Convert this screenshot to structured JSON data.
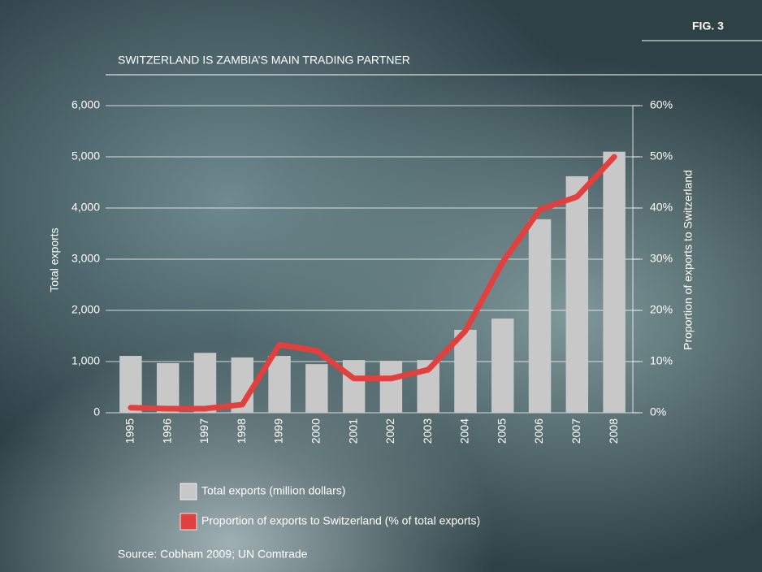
{
  "chart_data": {
    "type": "bar",
    "figure_label": "FIG. 3",
    "title": "SWITZERLAND IS ZAMBIA’S MAIN TRADING PARTNER",
    "y_label": "Total exports",
    "y2_label": "Proportion of exports to Switzerland",
    "source": "Source: Cobham 2009; UN Comtrade",
    "categories": [
      "1995",
      "1996",
      "1997",
      "1998",
      "1999",
      "2000",
      "2001",
      "2002",
      "2003",
      "2004",
      "2005",
      "2006",
      "2007",
      "2008"
    ],
    "series": [
      {
        "name": "Total exports (million dollars)",
        "type": "bar",
        "color": "#c8c8c8",
        "values": [
          1110,
          970,
          1170,
          1080,
          1110,
          950,
          1030,
          1015,
          1030,
          1620,
          1840,
          3780,
          4620,
          5100
        ]
      },
      {
        "name": "Proportion of exports to Switzerland (% of total exports)",
        "type": "line",
        "axis": "y2",
        "color": "#e2403f",
        "values": [
          1.0,
          0.8,
          0.8,
          1.6,
          13.3,
          12.1,
          6.7,
          6.7,
          8.4,
          16.0,
          29.4,
          39.7,
          42.2,
          50.0
        ]
      }
    ],
    "ylim": [
      0,
      6000
    ],
    "yticks": [
      0,
      {
        "value": 1000,
        "label": "1,000"
      },
      {
        "value": 2000,
        "label": "2,000"
      },
      {
        "value": 3000,
        "label": "3,000"
      },
      {
        "value": 4000,
        "label": "4,000"
      },
      {
        "value": 5000,
        "label": "5,000"
      },
      {
        "value": 6000,
        "label": "6,000"
      }
    ],
    "y2lim": [
      0,
      60
    ],
    "y2ticks": [
      {
        "value": 0,
        "label": "0%"
      },
      {
        "value": 10,
        "label": "10%"
      },
      {
        "value": 20,
        "label": "20%"
      },
      {
        "value": 30,
        "label": "30%"
      },
      {
        "value": 40,
        "label": "40%"
      },
      {
        "value": 50,
        "label": "50%"
      },
      {
        "value": 60,
        "label": "60%"
      }
    ],
    "grid": true
  }
}
